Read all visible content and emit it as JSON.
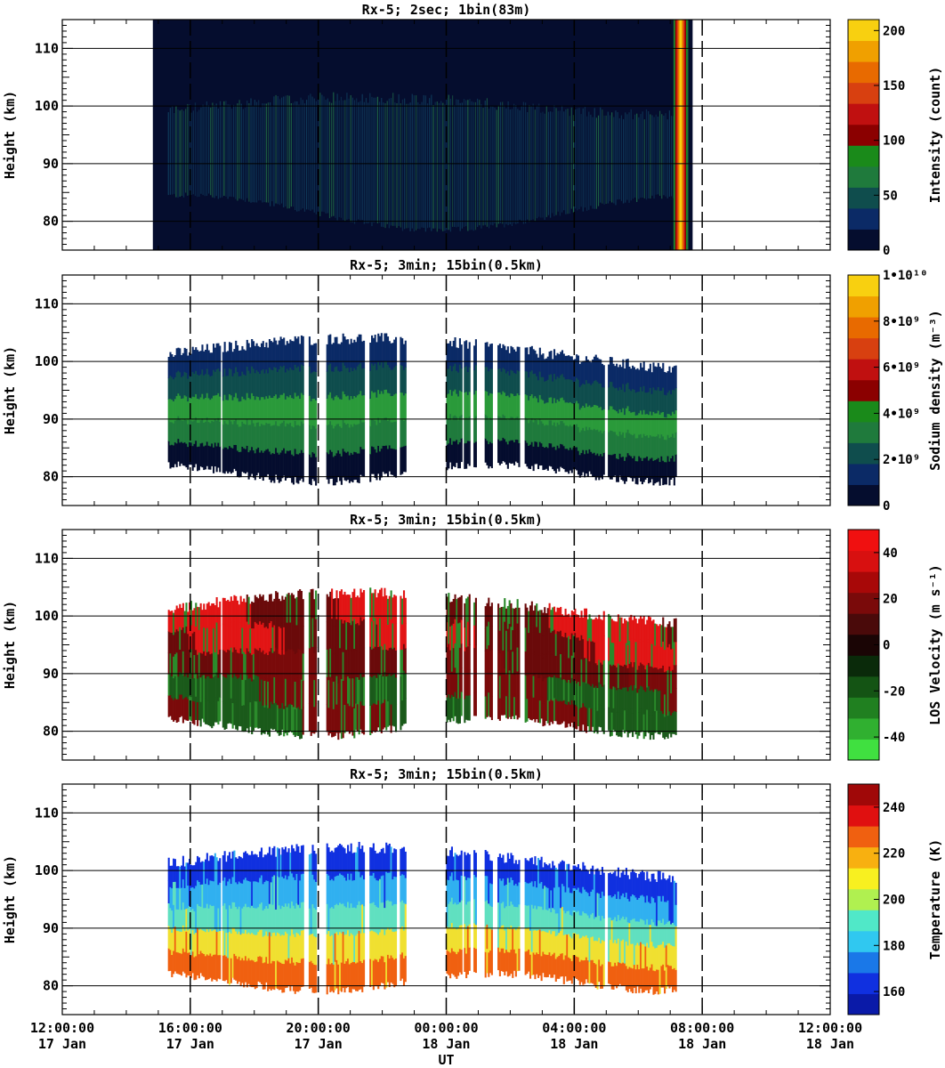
{
  "chart_data": [
    {
      "type": "heatmap",
      "title": "Rx-5;  2sec; 1bin(83m)",
      "ylabel": "Height (km)",
      "ylim": [
        75,
        115
      ],
      "yticks": [
        80,
        90,
        100,
        110
      ],
      "xlim": [
        0,
        24
      ],
      "colorbar": {
        "label": "Intensity (count)",
        "range": [
          0,
          210
        ],
        "tick_labels": [
          "0",
          "50",
          "100",
          "150",
          "200"
        ],
        "tick_values": [
          0,
          50,
          100,
          150,
          200
        ],
        "colors": [
          "#050d2e",
          "#0b2a66",
          "#0f4d4d",
          "#1f7a3c",
          "#1a8a1a",
          "#8b0000",
          "#c01010",
          "#d84010",
          "#e86a00",
          "#f0a000",
          "#f8d010"
        ]
      },
      "data_extent_x": [
        2.83,
        19.7
      ],
      "layer_fill": "#0b2252"
    },
    {
      "type": "heatmap",
      "title": "Rx-5; 3min; 15bin(0.5km)",
      "ylabel": "Height (km)",
      "ylim": [
        75,
        115
      ],
      "yticks": [
        80,
        90,
        100,
        110
      ],
      "xlim": [
        0,
        24
      ],
      "colorbar": {
        "label": "Sodium density (m⁻³)",
        "range": [
          0,
          10000000000.0
        ],
        "tick_labels": [
          "0",
          "2•10⁹",
          "4•10⁹",
          "6•10⁹",
          "8•10⁹",
          "1•10¹⁰"
        ],
        "tick_values": [
          0,
          2000000000.0,
          4000000000.0,
          6000000000.0,
          8000000000.0,
          10000000000.0
        ],
        "colors": [
          "#050d2e",
          "#0b2a66",
          "#0f4d4d",
          "#1f7a3c",
          "#1a8a1a",
          "#8b0000",
          "#c01010",
          "#d84010",
          "#e86a00",
          "#f0a000",
          "#f8d010"
        ]
      },
      "layer_colors": [
        "#050d2e",
        "#0b2a66",
        "#0f4d4d",
        "#1f7a3c",
        "#2a9a3a"
      ]
    },
    {
      "type": "heatmap",
      "title": "Rx-5; 3min; 15bin(0.5km)",
      "ylabel": "Height (km)",
      "ylim": [
        75,
        115
      ],
      "yticks": [
        80,
        90,
        100,
        110
      ],
      "xlim": [
        0,
        24
      ],
      "colorbar": {
        "label": "LOS Velocity (m s⁻¹)",
        "range": [
          -50,
          50
        ],
        "tick_labels": [
          "-40",
          "-20",
          "0",
          "20",
          "40"
        ],
        "tick_values": [
          -40,
          -20,
          0,
          20,
          40
        ],
        "colors": [
          "#40e040",
          "#30b030",
          "#208020",
          "#145414",
          "#0a2a0a",
          "#1a0505",
          "#4a0a0a",
          "#7a0a0a",
          "#a80808",
          "#d81010",
          "#f01010"
        ]
      },
      "layer_colors": [
        "#e21515",
        "#7a0a0a",
        "#1a5a1a",
        "#2a8a2a",
        "#6a0a0a"
      ]
    },
    {
      "type": "heatmap",
      "title": "Rx-5; 3min; 15bin(0.5km)",
      "ylabel": "Height (km)",
      "ylim": [
        75,
        115
      ],
      "yticks": [
        80,
        90,
        100,
        110
      ],
      "xlim": [
        0,
        24
      ],
      "colorbar": {
        "label": "Temperature (K)",
        "range": [
          150,
          250
        ],
        "tick_labels": [
          "160",
          "180",
          "200",
          "220",
          "240"
        ],
        "tick_values": [
          160,
          180,
          200,
          220,
          240
        ],
        "colors": [
          "#0a1aa8",
          "#1030e0",
          "#1a78e8",
          "#30c8f0",
          "#50e8c8",
          "#b0f050",
          "#f8f020",
          "#f8b010",
          "#f06010",
          "#e01010",
          "#a00808"
        ]
      },
      "layer_colors": [
        "#1030e0",
        "#30b0f0",
        "#60e0c0",
        "#f0e030",
        "#f06010"
      ]
    }
  ],
  "xaxis": {
    "label": "UT",
    "tick_labels": [
      {
        "time": "12:00:00",
        "date": "17 Jan"
      },
      {
        "time": "16:00:00",
        "date": "17 Jan"
      },
      {
        "time": "20:00:00",
        "date": "17 Jan"
      },
      {
        "time": "00:00:00",
        "date": "18 Jan"
      },
      {
        "time": "04:00:00",
        "date": "18 Jan"
      },
      {
        "time": "08:00:00",
        "date": "18 Jan"
      },
      {
        "time": "12:00:00",
        "date": "18 Jan"
      }
    ],
    "tick_hours": [
      0,
      4,
      8,
      12,
      16,
      20,
      24
    ]
  },
  "observation_windows_hours": [
    [
      3.3,
      4.9
    ],
    [
      5.0,
      7.5
    ],
    [
      7.7,
      7.9
    ],
    [
      8.25,
      9.45
    ],
    [
      9.6,
      10.45
    ],
    [
      10.55,
      10.75
    ],
    [
      12.0,
      12.5
    ],
    [
      12.55,
      12.75
    ],
    [
      12.85,
      12.95
    ],
    [
      13.2,
      13.45
    ],
    [
      13.6,
      14.3
    ],
    [
      14.45,
      16.95
    ],
    [
      17.05,
      19.2
    ]
  ]
}
